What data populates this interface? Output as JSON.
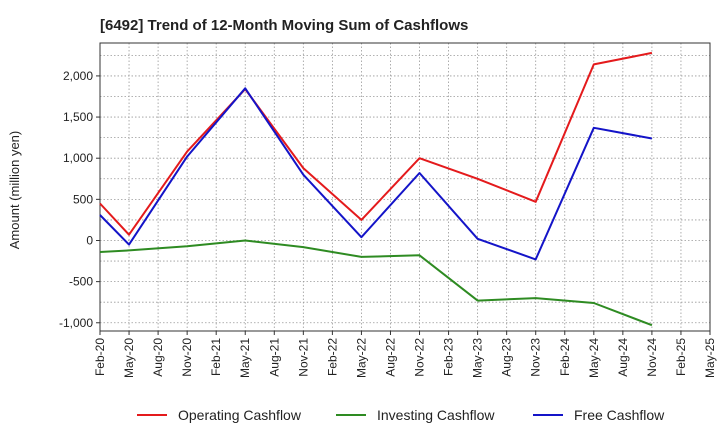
{
  "chart_data": {
    "type": "line",
    "title": "[6492]  Trend of 12-Month Moving Sum of Cashflows",
    "ylabel": "Amount (million yen)",
    "xlabel": "",
    "ylim": [
      -1100,
      2400
    ],
    "yticks": [
      -1000,
      -500,
      0,
      500,
      1000,
      1500,
      2000
    ],
    "ytick_labels": [
      "-1,000",
      "-500",
      "0",
      "500",
      "1,000",
      "1,500",
      "2,000"
    ],
    "categories": [
      "Feb-20",
      "May-20",
      "Aug-20",
      "Nov-20",
      "Feb-21",
      "May-21",
      "Aug-21",
      "Nov-21",
      "Feb-22",
      "May-22",
      "Aug-22",
      "Nov-22",
      "Feb-23",
      "May-23",
      "Aug-23",
      "Nov-23",
      "Feb-24",
      "May-24",
      "Aug-24",
      "Nov-24",
      "Feb-25",
      "May-25"
    ],
    "grid": true,
    "legend_position": "bottom",
    "series": [
      {
        "name": "Operating Cashflow",
        "color": "#e41a1c",
        "values": [
          450,
          70,
          null,
          1080,
          null,
          1840,
          null,
          880,
          null,
          250,
          null,
          1000,
          null,
          750,
          null,
          470,
          null,
          2140,
          null,
          2280,
          null,
          null
        ]
      },
      {
        "name": "Investing Cashflow",
        "color": "#2e8b22",
        "values": [
          -140,
          -120,
          null,
          -70,
          null,
          0,
          null,
          -80,
          null,
          -200,
          null,
          -180,
          null,
          -730,
          null,
          -700,
          null,
          -760,
          null,
          -1030,
          null,
          null
        ]
      },
      {
        "name": "Free Cashflow",
        "color": "#1414c8",
        "values": [
          310,
          -50,
          null,
          1020,
          null,
          1850,
          null,
          800,
          null,
          40,
          null,
          820,
          null,
          20,
          null,
          -230,
          null,
          1370,
          null,
          1240,
          null,
          null
        ]
      }
    ]
  }
}
